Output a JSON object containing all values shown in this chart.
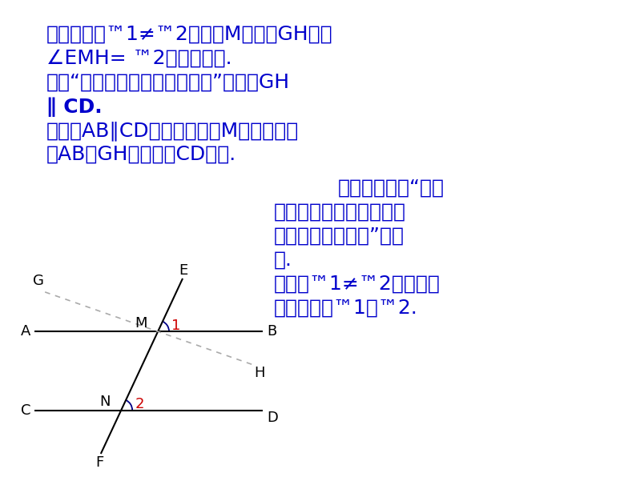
{
  "bg_color": "#ffffff",
  "text_color_blue": "#0000cc",
  "text_color_black": "#000000",
  "text_color_red": "#cc0000",
  "line1": "证明：假设™1≠™2，过点M作直线GH，使",
  "line2": "∠EMH= ™2，如图所示.",
  "line3": "根据“同位角相等，两直线平行”，可知GH",
  "line4": "∥ CD.",
  "line5": "又因为AB∥CD，这样经过点M存在两条直",
  "line6": "线AB和GH都与直线CD平行.",
  "right1": "这与基本事实“过直",
  "right2": "线外一点有且只有一条直",
  "right3": "线与这条直线平行”相矛",
  "right4": "盾.",
  "right5": "这说明™1≠™2的假设不",
  "right6": "成立，所以™1＝™2.",
  "font_size_main": 18,
  "font_size_diagram": 14,
  "arc_color": "#000088"
}
